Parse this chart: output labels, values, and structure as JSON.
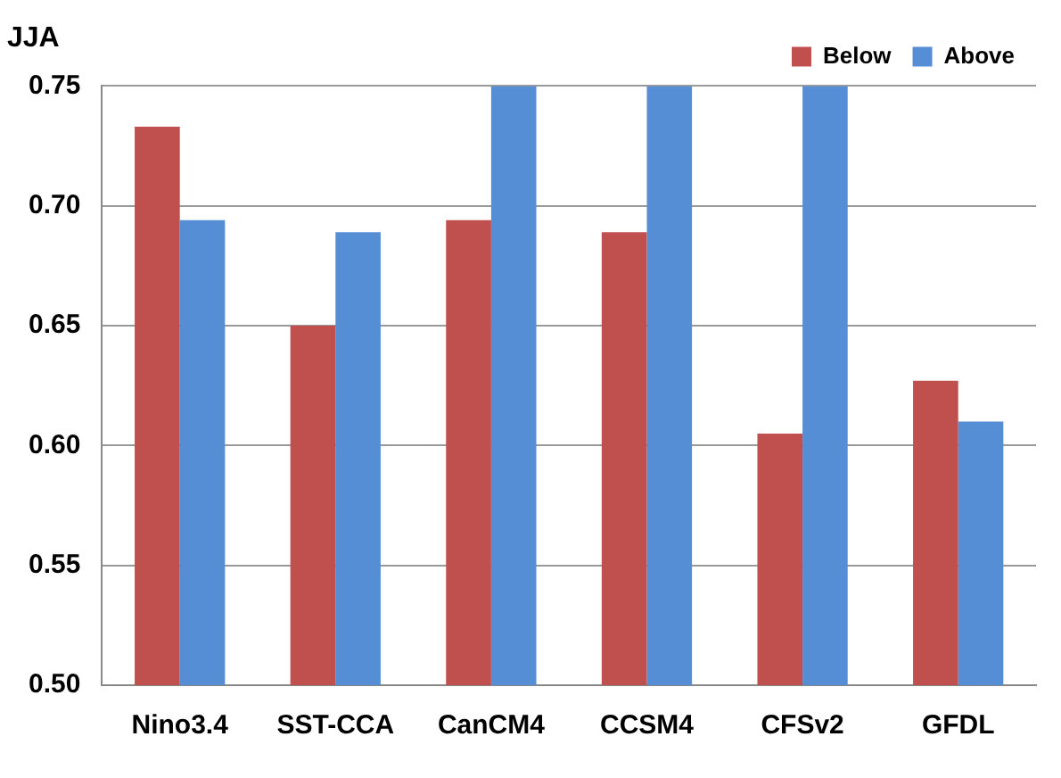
{
  "chart_data": {
    "type": "bar",
    "title": "JJA",
    "categories": [
      "Nino3.4",
      "SST-CCA",
      "CanCM4",
      "CCSM4",
      "CFSv2",
      "GFDL"
    ],
    "series": [
      {
        "name": "Below",
        "color": "#c0504d",
        "values": [
          0.733,
          0.65,
          0.694,
          0.689,
          0.605,
          0.627
        ]
      },
      {
        "name": "Above",
        "color": "#558ed5",
        "values": [
          0.694,
          0.689,
          0.75,
          0.75,
          0.75,
          0.61
        ]
      }
    ],
    "ylim": [
      0.5,
      0.75
    ],
    "yticks": [
      {
        "value": 0.5,
        "label": "0.50"
      },
      {
        "value": 0.55,
        "label": "0.55"
      },
      {
        "value": 0.6,
        "label": "0.60"
      },
      {
        "value": 0.65,
        "label": "0.65"
      },
      {
        "value": 0.7,
        "label": "0.70"
      },
      {
        "value": 0.75,
        "label": "0.75"
      }
    ],
    "grid": "y",
    "legend": "top right"
  }
}
